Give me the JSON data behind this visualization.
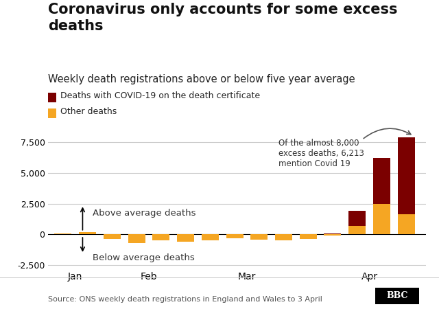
{
  "title": "Coronavirus only accounts for some excess\ndeaths",
  "subtitle": "Weekly death registrations above or below five year average",
  "legend": [
    {
      "label": "Deaths with COVID-19 on the death certificate",
      "color": "#7b0000"
    },
    {
      "label": "Other deaths",
      "color": "#f5a623"
    }
  ],
  "source": "Source: ONS weekly death registrations in England and Wales to 3 April",
  "annotation": "Of the almost 8,000\nexcess deaths, 6,213\nmention Covid 19",
  "above_label": "Above average deaths",
  "below_label": "Below average deaths",
  "ylim": [
    -2800,
    8500
  ],
  "yticks": [
    -2500,
    0,
    2500,
    5000,
    7500
  ],
  "bar_width": 0.7,
  "covid_color": "#7b0000",
  "other_color": "#f5a623",
  "bars": [
    {
      "x": 1,
      "covid": 0,
      "other": 50
    },
    {
      "x": 2,
      "covid": 0,
      "other": 200
    },
    {
      "x": 3,
      "covid": 0,
      "other": -350
    },
    {
      "x": 4,
      "covid": 0,
      "other": -700
    },
    {
      "x": 5,
      "covid": 0,
      "other": -500
    },
    {
      "x": 6,
      "covid": 0,
      "other": -600
    },
    {
      "x": 7,
      "covid": 0,
      "other": -500
    },
    {
      "x": 8,
      "covid": 0,
      "other": -300
    },
    {
      "x": 9,
      "covid": 0,
      "other": -450
    },
    {
      "x": 10,
      "covid": 0,
      "other": -500
    },
    {
      "x": 11,
      "covid": 0,
      "other": -350
    },
    {
      "x": 12,
      "covid": 50,
      "other": -80
    },
    {
      "x": 13,
      "covid": 1200,
      "other": 700
    },
    {
      "x": 14,
      "covid": 3700,
      "other": 2500
    },
    {
      "x": 15,
      "covid": 6213,
      "other": 1650
    }
  ],
  "month_ticks": [
    {
      "x": 1.5,
      "label": "Jan"
    },
    {
      "x": 4.5,
      "label": "Feb"
    },
    {
      "x": 8.5,
      "label": "Mar"
    },
    {
      "x": 13.5,
      "label": "Apr"
    }
  ],
  "background_color": "#ffffff",
  "title_fontsize": 15,
  "subtitle_fontsize": 10.5,
  "legend_fontsize": 9,
  "tick_fontsize": 9,
  "source_fontsize": 8
}
